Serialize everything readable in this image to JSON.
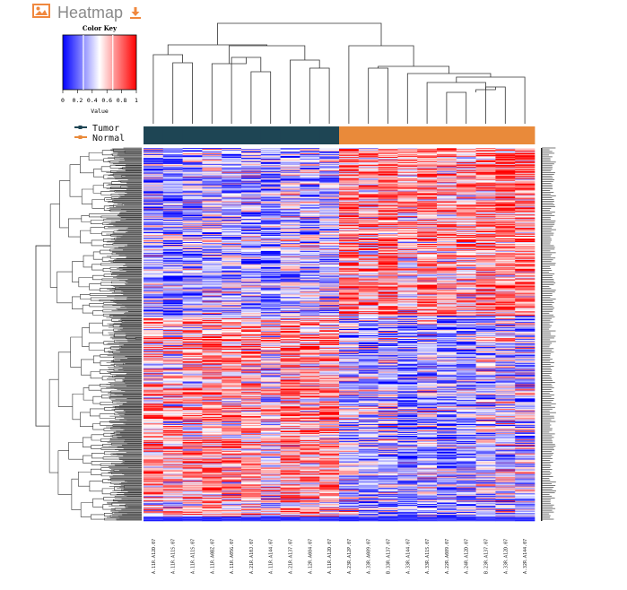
{
  "header": {
    "title": "Heatmap",
    "image_icon": "image-icon",
    "download_icon": "download-icon",
    "accent_color": "#f0883e"
  },
  "chart_data": {
    "type": "heatmap",
    "title": "",
    "color_key": {
      "title": "Color Key",
      "xlabel": "Value",
      "ticks": [
        "0",
        "0.2",
        "0.4",
        "0.6",
        "0.8",
        "1"
      ],
      "range": [
        0,
        1
      ],
      "colors": [
        "#0000ff",
        "#ffffff",
        "#ff0000"
      ]
    },
    "legend": {
      "placement": "top-left",
      "entries": [
        {
          "name": "Tumor",
          "color": "#1e4554"
        },
        {
          "name": "Normal",
          "color": "#e98a3a"
        }
      ]
    },
    "columns": [
      {
        "label": "A.11R.A12D.07",
        "group": "Tumor"
      },
      {
        "label": "A.11R.A11S.07",
        "group": "Tumor"
      },
      {
        "label": "A.11R.A11S.07",
        "group": "Tumor"
      },
      {
        "label": "A.11R.A0BZ.07",
        "group": "Tumor"
      },
      {
        "label": "A.11R.A05G.07",
        "group": "Tumor"
      },
      {
        "label": "A.21R.A10J.07",
        "group": "Tumor"
      },
      {
        "label": "A.11R.A144.07",
        "group": "Tumor"
      },
      {
        "label": "A.21R.A137.07",
        "group": "Tumor"
      },
      {
        "label": "A.12R.A084.07",
        "group": "Tumor"
      },
      {
        "label": "A.11R.A12D.07",
        "group": "Tumor"
      },
      {
        "label": "A.23R.A12P.07",
        "group": "Normal"
      },
      {
        "label": "A.33R.A089.07",
        "group": "Normal"
      },
      {
        "label": "B.33R.A137.07",
        "group": "Normal"
      },
      {
        "label": "A.33R.A144.07",
        "group": "Normal"
      },
      {
        "label": "A.33R.A11S.07",
        "group": "Normal"
      },
      {
        "label": "A.22R.A089.07",
        "group": "Normal"
      },
      {
        "label": "A.24R.A12D.07",
        "group": "Normal"
      },
      {
        "label": "B.23R.A137.07",
        "group": "Normal"
      },
      {
        "label": "A.33R.A12D.07",
        "group": "Normal"
      },
      {
        "label": "A.32R.A144.07",
        "group": "Normal"
      }
    ],
    "rows": 420,
    "pattern": "Tumor columns predominantly low values (blue) in the upper row cluster and high values (red) in the lower row cluster; Normal columns show the reverse pattern",
    "row_dendrogram": true,
    "column_dendrogram": true
  }
}
